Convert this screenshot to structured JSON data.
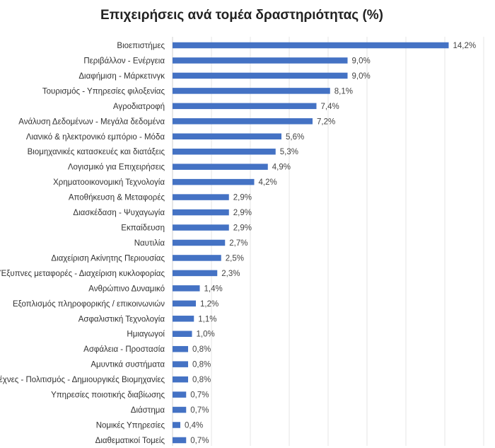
{
  "chart_data": {
    "type": "bar",
    "orientation": "horizontal",
    "title": "Επιχειρήσεις ανά τομέα δραστηριότητας (%)",
    "xlabel": "",
    "ylabel": "",
    "xlim": [
      0,
      16
    ],
    "grid": true,
    "bar_color": "#4472C4",
    "categories": [
      "Βιοεπιστήμες",
      "Περιβάλλον - Ενέργεια",
      "Διαφήμιση - Μάρκετινγκ",
      "Τουρισμός - Υπηρεσίες φιλοξενίας",
      "Αγροδιατροφή",
      "Ανάλυση Δεδομένων - Μεγάλα δεδομένα",
      "Λιανικό & ηλεκτρονικό εμπόριο - Μόδα",
      "Βιομηχανικές κατασκευές και διατάξεις",
      "Λογισμικό για Επιχειρήσεις",
      "Χρηματοοικονομική Τεχνολογία",
      "Αποθήκευση & Μεταφορές",
      "Διασκέδαση - Ψυχαγωγία",
      "Εκπαίδευση",
      "Ναυτιλία",
      "Διαχείριση Ακίνητης Περιουσίας",
      "Έξυπνες μεταφορές - Διαχείριση κυκλοφορίας",
      "Ανθρώπινο Δυναμικό",
      "Εξοπλισμός πληροφορικής / επικοινωνιών",
      "Ασφαλιστική Τεχνολογία",
      "Ημιαγωγοί",
      "Ασφάλεια - Προστασία",
      "Αμυντικά συστήματα",
      "Τέχνες - Πολιτισμός - Δημιουργικές Βιομηχανίες",
      "Υπηρεσίες ποιοτικής διαβίωσης",
      "Διάστημα",
      "Νομικές Υπηρεσίες",
      "Διαθεματικοί Τομείς"
    ],
    "values": [
      14.2,
      9.0,
      9.0,
      8.1,
      7.4,
      7.2,
      5.6,
      5.3,
      4.9,
      4.2,
      2.9,
      2.9,
      2.9,
      2.7,
      2.5,
      2.3,
      1.4,
      1.2,
      1.1,
      1.0,
      0.8,
      0.8,
      0.8,
      0.7,
      0.7,
      0.4,
      0.7
    ],
    "data_labels": [
      "14,2%",
      "9,0%",
      "9,0%",
      "8,1%",
      "7,4%",
      "7,2%",
      "5,6%",
      "5,3%",
      "4,9%",
      "4,2%",
      "2,9%",
      "2,9%",
      "2,9%",
      "2,7%",
      "2,5%",
      "2,3%",
      "1,4%",
      "1,2%",
      "1,1%",
      "1,0%",
      "0,8%",
      "0,8%",
      "0,8%",
      "0,7%",
      "0,7%",
      "0,4%",
      "0,7%"
    ]
  }
}
